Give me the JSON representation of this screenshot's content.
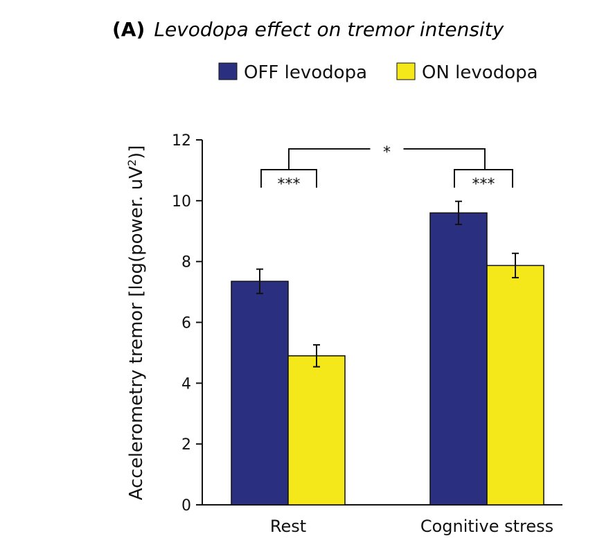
{
  "chart_data": {
    "type": "bar",
    "title_label": "(A)",
    "title": "Levodopa effect on tremor intensity",
    "xlabel": "",
    "ylabel_prefix": "Accelerometry tremor [log(power. uV",
    "ylabel_sup": "2",
    "ylabel_suffix": ")]",
    "ylim": [
      0,
      12
    ],
    "yticks": [
      0,
      2,
      4,
      6,
      8,
      10,
      12
    ],
    "categories": [
      "Rest",
      "Cognitive stress"
    ],
    "legend_position": "top",
    "series": [
      {
        "name": "OFF levodopa",
        "color": "#2b2f7f",
        "values": [
          7.35,
          9.6
        ],
        "errors": [
          0.4,
          0.38
        ]
      },
      {
        "name": "ON levodopa",
        "color": "#f5e81a",
        "values": [
          4.9,
          7.87
        ],
        "errors": [
          0.36,
          0.4
        ]
      }
    ],
    "significance": [
      {
        "label": "***",
        "scope": "Rest: OFF vs ON"
      },
      {
        "label": "***",
        "scope": "Cognitive stress: OFF vs ON"
      },
      {
        "label": "*",
        "scope": "Rest vs Cognitive stress"
      }
    ]
  }
}
